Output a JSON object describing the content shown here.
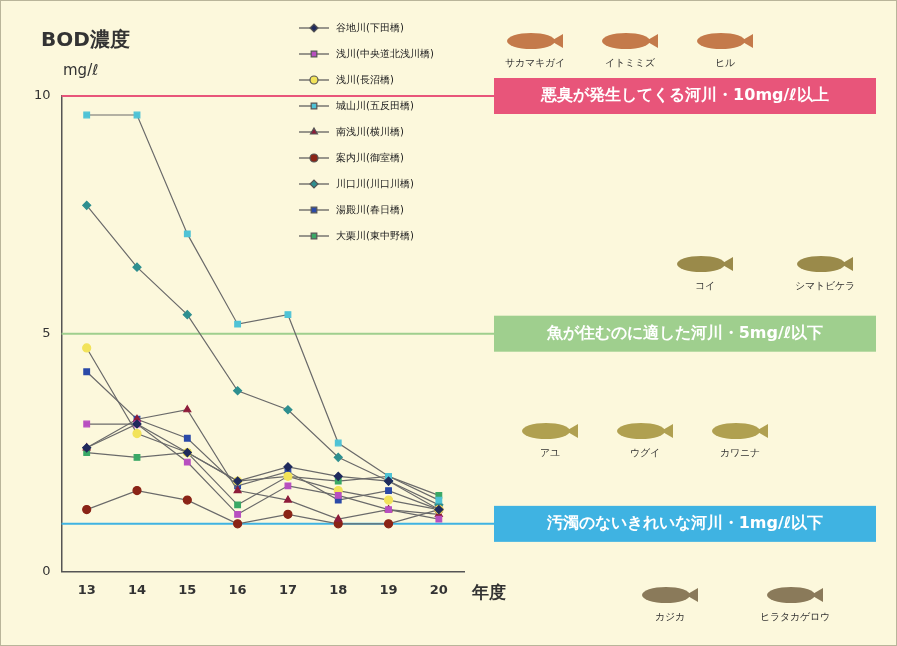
{
  "chart_data": {
    "type": "line",
    "title": "BOD濃度",
    "y_label": "mg/ℓ",
    "x_label": "年度",
    "categories": [
      "13",
      "14",
      "15",
      "16",
      "17",
      "18",
      "19",
      "20"
    ],
    "series": [
      {
        "name": "谷地川(下田橋)",
        "color": "#1f2a5c",
        "marker": "diamond",
        "values": [
          2.6,
          3.1,
          2.5,
          1.9,
          2.2,
          2.0,
          1.9,
          1.3
        ]
      },
      {
        "name": "浅川(中央道北浅川橋)",
        "color": "#b84fc0",
        "marker": "square",
        "values": [
          3.1,
          3.1,
          2.3,
          1.2,
          1.8,
          1.6,
          1.3,
          1.1
        ]
      },
      {
        "name": "浅川(長沼橋)",
        "color": "#f2e35a",
        "marker": "circle",
        "values": [
          4.7,
          2.9,
          2.5,
          1.9,
          2.0,
          1.7,
          1.5,
          1.3
        ]
      },
      {
        "name": "城山川(五反田橋)",
        "color": "#4fc3d6",
        "marker": "square",
        "values": [
          9.6,
          9.6,
          7.1,
          5.2,
          5.4,
          2.7,
          2.0,
          1.5
        ]
      },
      {
        "name": "南浅川(横川橋)",
        "color": "#8e1c3a",
        "marker": "triangle",
        "values": [
          2.6,
          3.2,
          3.4,
          1.7,
          1.5,
          1.1,
          1.3,
          1.2
        ]
      },
      {
        "name": "案内川(御室橋)",
        "color": "#8a2416",
        "marker": "circle",
        "values": [
          1.3,
          1.7,
          1.5,
          1.0,
          1.2,
          1.0,
          1.0,
          1.3
        ]
      },
      {
        "name": "川口川(川口川橋)",
        "color": "#2e8f8f",
        "marker": "diamond",
        "values": [
          7.7,
          6.4,
          5.4,
          3.8,
          3.4,
          2.4,
          1.9,
          1.4
        ]
      },
      {
        "name": "湯殿川(春日橋)",
        "color": "#2b4aa8",
        "marker": "square",
        "values": [
          4.2,
          3.2,
          2.8,
          1.8,
          2.1,
          1.5,
          1.7,
          1.3
        ]
      },
      {
        "name": "大栗川(東中野橋)",
        "color": "#3aa866",
        "marker": "square",
        "values": [
          2.5,
          2.4,
          2.5,
          1.4,
          2.0,
          1.9,
          2.0,
          1.6
        ]
      }
    ],
    "ylim": [
      0,
      10
    ],
    "yticks": [
      0,
      5,
      10
    ],
    "grid": false,
    "legend": "upper right",
    "annotations": [
      {
        "y": 10,
        "text": "悪臭が発生してくる河川・10mg/ℓ以上",
        "color": "#e8557a"
      },
      {
        "y": 5,
        "text": "魚が住むのに適した河川・5mg/ℓ以下",
        "color": "#9fcf8e"
      },
      {
        "y": 1,
        "text": "汚濁のないきれいな河川・1mg/ℓ以下",
        "color": "#3fb3e2"
      }
    ],
    "illustration_labels": [
      [
        "サカマキガイ",
        "イトミミズ",
        "ヒル"
      ],
      [
        "コイ",
        "シマトビケラ"
      ],
      [
        "アユ",
        "ウグイ",
        "カワニナ"
      ],
      [
        "カジカ",
        "ヒラタカゲロウ"
      ]
    ]
  }
}
